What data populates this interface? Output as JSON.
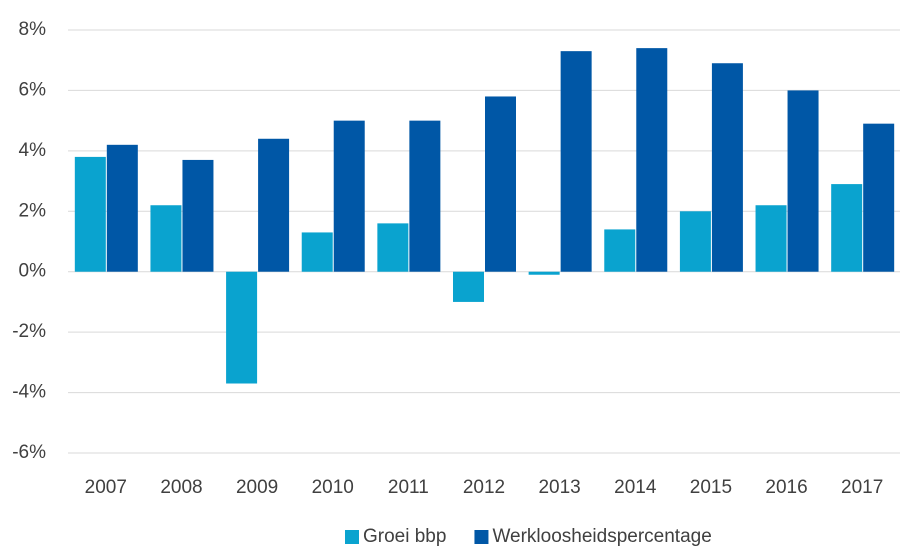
{
  "chart_data": {
    "type": "bar",
    "categories": [
      "2007",
      "2008",
      "2009",
      "2010",
      "2011",
      "2012",
      "2013",
      "2014",
      "2015",
      "2016",
      "2017"
    ],
    "series": [
      {
        "name": "Groei bbp",
        "color": "#0aa3cf",
        "values": [
          3.8,
          2.2,
          -3.7,
          1.3,
          1.6,
          -1.0,
          -0.1,
          1.4,
          2.0,
          2.2,
          2.9
        ]
      },
      {
        "name": "Werkloosheidspercentage",
        "color": "#0057a6",
        "values": [
          4.2,
          3.7,
          4.4,
          5.0,
          5.0,
          5.8,
          7.3,
          7.4,
          6.9,
          6.0,
          4.9
        ]
      }
    ],
    "ylim": [
      -6,
      8
    ],
    "yticks": [
      {
        "value": -6,
        "label": "-6%"
      },
      {
        "value": -4,
        "label": "-4%"
      },
      {
        "value": -2,
        "label": "-2%"
      },
      {
        "value": 0,
        "label": "0%"
      },
      {
        "value": 2,
        "label": "2%"
      },
      {
        "value": 4,
        "label": "4%"
      },
      {
        "value": 6,
        "label": "6%"
      },
      {
        "value": 8,
        "label": "8%"
      }
    ],
    "grid": true,
    "legend": "bottom"
  }
}
